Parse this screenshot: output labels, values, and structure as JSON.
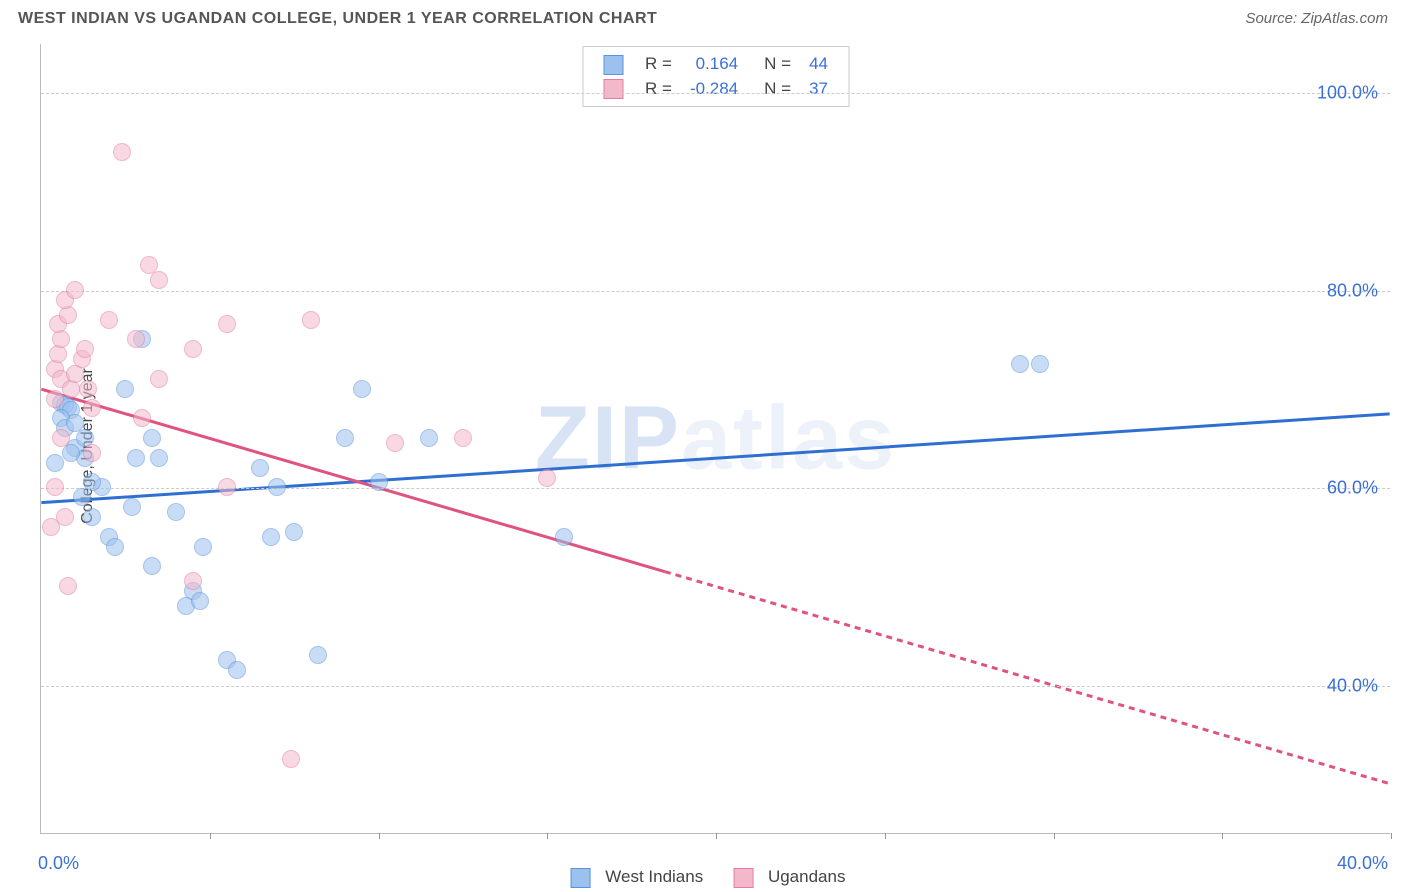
{
  "title": "WEST INDIAN VS UGANDAN COLLEGE, UNDER 1 YEAR CORRELATION CHART",
  "source": "Source: ZipAtlas.com",
  "ylabel": "College, Under 1 year",
  "watermark_a": "ZIP",
  "watermark_b": "atlas",
  "chart": {
    "type": "scatter",
    "xlim": [
      0,
      40
    ],
    "ylim": [
      25,
      105
    ],
    "xtick_step": 5,
    "yticks": [
      40,
      60,
      80,
      100
    ],
    "ytick_format": "percent1",
    "x_left_label": "0.0%",
    "x_right_label": "40.0%",
    "background_color": "#ffffff",
    "grid_color": "#cccccc",
    "axis_color": "#bbbbbb",
    "tick_label_color": "#3b6fd8",
    "title_fontsize": 17,
    "label_fontsize": 16,
    "point_radius": 9,
    "point_opacity": 0.55,
    "watermark_fontsize": 90,
    "series": [
      {
        "name": "West Indians",
        "color_fill": "#9cc1ee",
        "color_stroke": "#5a93db",
        "line_color": "#2f6fd1",
        "line_width": 3,
        "R": "0.164",
        "N": "44",
        "trend": {
          "x0": 0,
          "y0": 58.5,
          "x1": 40,
          "y1": 67.5,
          "dash_from_x": null
        },
        "points": [
          [
            0.6,
            68.5
          ],
          [
            0.7,
            68.3
          ],
          [
            0.8,
            68.1
          ],
          [
            0.9,
            67.8
          ],
          [
            0.6,
            67.0
          ],
          [
            0.7,
            66.0
          ],
          [
            1.0,
            66.5
          ],
          [
            1.0,
            64.0
          ],
          [
            1.3,
            65.0
          ],
          [
            1.3,
            63.0
          ],
          [
            1.8,
            60.0
          ],
          [
            1.5,
            60.5
          ],
          [
            0.9,
            63.5
          ],
          [
            0.4,
            62.5
          ],
          [
            1.2,
            59.0
          ],
          [
            1.5,
            57.0
          ],
          [
            2.0,
            55.0
          ],
          [
            2.2,
            54.0
          ],
          [
            2.5,
            70.0
          ],
          [
            2.7,
            58.0
          ],
          [
            2.8,
            63.0
          ],
          [
            3.0,
            75.0
          ],
          [
            3.3,
            52.0
          ],
          [
            3.3,
            65.0
          ],
          [
            3.5,
            63.0
          ],
          [
            4.0,
            57.5
          ],
          [
            4.3,
            48.0
          ],
          [
            4.5,
            49.5
          ],
          [
            4.7,
            48.5
          ],
          [
            4.8,
            54.0
          ],
          [
            5.5,
            42.5
          ],
          [
            5.8,
            41.5
          ],
          [
            6.5,
            62.0
          ],
          [
            6.8,
            55.0
          ],
          [
            7.0,
            60.0
          ],
          [
            7.5,
            55.5
          ],
          [
            8.2,
            43.0
          ],
          [
            9.0,
            65.0
          ],
          [
            9.5,
            70.0
          ],
          [
            10.0,
            60.5
          ],
          [
            11.5,
            65.0
          ],
          [
            15.5,
            55.0
          ],
          [
            29.0,
            72.5
          ],
          [
            29.6,
            72.5
          ]
        ]
      },
      {
        "name": "Ugandans",
        "color_fill": "#f3b9cb",
        "color_stroke": "#e37da1",
        "line_color": "#e0527f",
        "line_width": 3,
        "R": "-0.284",
        "N": "37",
        "trend": {
          "x0": 0,
          "y0": 70.0,
          "x1": 40,
          "y1": 30.0,
          "dash_from_x": 18.5
        },
        "points": [
          [
            0.4,
            72.0
          ],
          [
            0.5,
            73.5
          ],
          [
            0.6,
            75.0
          ],
          [
            0.5,
            76.5
          ],
          [
            0.8,
            77.5
          ],
          [
            0.7,
            79.0
          ],
          [
            1.0,
            80.0
          ],
          [
            0.6,
            71.0
          ],
          [
            0.4,
            69.0
          ],
          [
            0.9,
            70.0
          ],
          [
            1.0,
            71.5
          ],
          [
            1.2,
            73.0
          ],
          [
            1.3,
            74.0
          ],
          [
            1.4,
            70.0
          ],
          [
            1.5,
            68.0
          ],
          [
            0.6,
            65.0
          ],
          [
            0.4,
            60.0
          ],
          [
            0.7,
            57.0
          ],
          [
            0.3,
            56.0
          ],
          [
            0.8,
            50.0
          ],
          [
            1.5,
            63.5
          ],
          [
            2.0,
            77.0
          ],
          [
            2.4,
            94.0
          ],
          [
            2.8,
            75.0
          ],
          [
            3.0,
            67.0
          ],
          [
            3.2,
            82.5
          ],
          [
            3.5,
            81.0
          ],
          [
            3.5,
            71.0
          ],
          [
            4.5,
            74.0
          ],
          [
            4.5,
            50.5
          ],
          [
            5.5,
            76.5
          ],
          [
            5.5,
            60.0
          ],
          [
            7.4,
            32.5
          ],
          [
            8.0,
            77.0
          ],
          [
            10.5,
            64.5
          ],
          [
            12.5,
            65.0
          ],
          [
            15.0,
            61.0
          ]
        ]
      }
    ]
  },
  "legend_bottom": [
    {
      "label": "West Indians",
      "fill": "#9cc1ee",
      "stroke": "#5a93db"
    },
    {
      "label": "Ugandans",
      "fill": "#f3b9cb",
      "stroke": "#e37da1"
    }
  ]
}
